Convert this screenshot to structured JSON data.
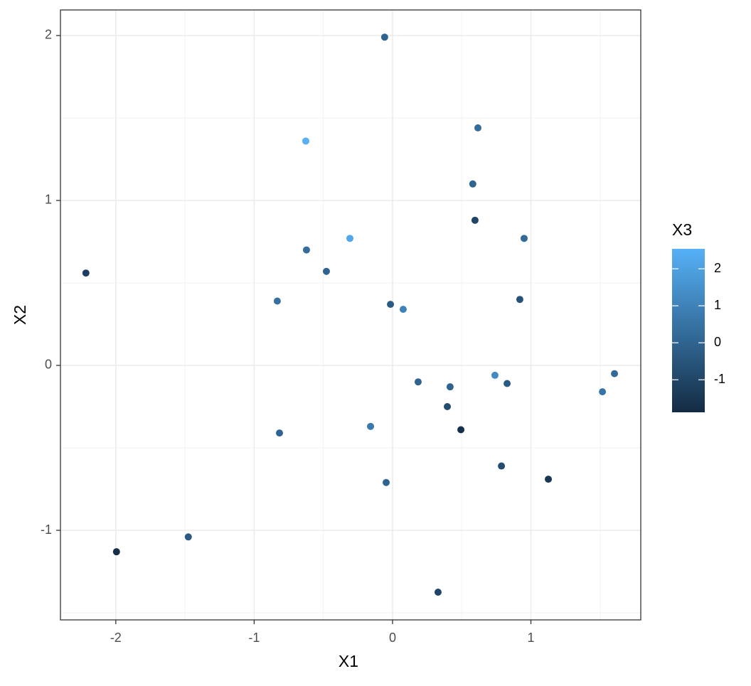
{
  "chart_data": {
    "type": "scatter",
    "x_label": "X1",
    "y_label": "X2",
    "color_label": "X3",
    "x": [
      -0.057,
      -0.627,
      0.617,
      0.58,
      0.596,
      0.951,
      -0.308,
      -0.622,
      -2.216,
      -0.478,
      -0.833,
      -0.015,
      0.077,
      0.92,
      1.604,
      0.74,
      0.185,
      0.416,
      0.828,
      1.517,
      0.396,
      -0.159,
      0.494,
      -0.817,
      0.787,
      1.126,
      -0.046,
      -1.476,
      -1.995,
      0.329
    ],
    "values": [
      1.99,
      1.36,
      1.44,
      1.1,
      0.88,
      0.77,
      0.77,
      0.7,
      0.56,
      0.57,
      0.39,
      0.37,
      0.34,
      0.4,
      -0.05,
      -0.06,
      -0.1,
      -0.13,
      -0.11,
      -0.16,
      -0.25,
      -0.37,
      -0.39,
      -0.41,
      -0.61,
      -0.69,
      -0.71,
      -1.04,
      -1.13,
      -1.375
    ],
    "color_values": [
      0,
      2.5,
      0.3,
      0,
      -1,
      0.2,
      2.2,
      0.3,
      -1.2,
      0,
      0.4,
      -0.3,
      1,
      -0.6,
      0.2,
      1.3,
      0,
      0,
      -0.3,
      0.5,
      -0.8,
      0.7,
      -1.7,
      0,
      -0.8,
      -1.5,
      0,
      -0.3,
      -1.7,
      -1
    ],
    "xlim": [
      -2.4,
      1.794
    ],
    "ylim": [
      -1.543,
      2.155
    ],
    "xticks": [
      -2,
      -1,
      0,
      1
    ],
    "yticks": [
      -1,
      0,
      1,
      2
    ],
    "clim": [
      -1.88,
      2.54
    ],
    "cticks": [
      -1,
      0,
      1,
      2
    ],
    "color_low": "#132B43",
    "color_high": "#56B1F7",
    "grid": true
  }
}
